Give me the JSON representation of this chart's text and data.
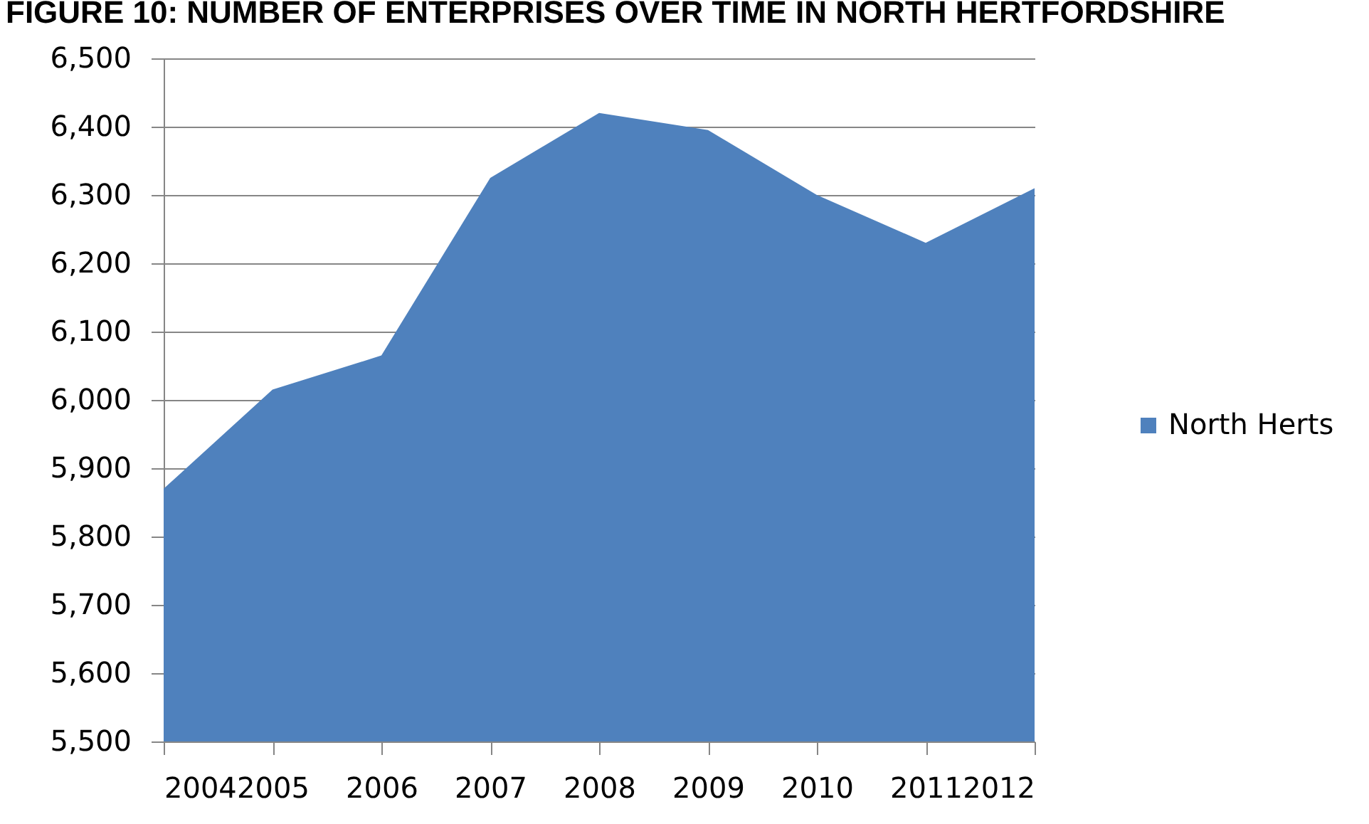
{
  "chart_data": {
    "type": "area",
    "title": "FIGURE 10: NUMBER OF ENTERPRISES OVER TIME IN NORTH HERTFORDSHIRE",
    "x": [
      2004,
      2005,
      2006,
      2007,
      2008,
      2009,
      2010,
      2011,
      2012
    ],
    "series": [
      {
        "name": "North Herts",
        "color": "#4f81bd",
        "values": [
          5870,
          6015,
          6065,
          6325,
          6420,
          6395,
          6300,
          6230,
          6310
        ]
      }
    ],
    "xlim": [
      2004,
      2012
    ],
    "xticks": [
      2004,
      2005,
      2006,
      2007,
      2008,
      2009,
      2010,
      2011,
      2012
    ],
    "ylim": [
      5500,
      6500
    ],
    "yticks": [
      {
        "value": 5500,
        "label": "5,500"
      },
      {
        "value": 5600,
        "label": "5,600"
      },
      {
        "value": 5700,
        "label": "5,700"
      },
      {
        "value": 5800,
        "label": "5,800"
      },
      {
        "value": 5900,
        "label": "5,900"
      },
      {
        "value": 6000,
        "label": "6,000"
      },
      {
        "value": 6100,
        "label": "6,100"
      },
      {
        "value": 6200,
        "label": "6,200"
      },
      {
        "value": 6300,
        "label": "6,300"
      },
      {
        "value": 6400,
        "label": "6,400"
      },
      {
        "value": 6500,
        "label": "6,500"
      }
    ],
    "grid": "y",
    "legend": "right"
  }
}
